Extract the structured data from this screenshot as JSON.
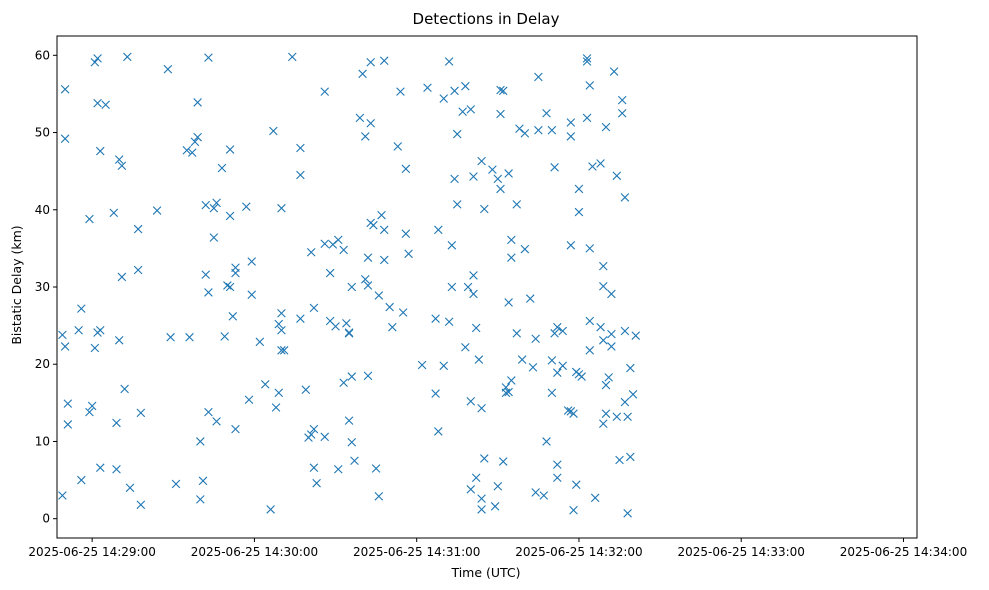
{
  "chart_data": {
    "type": "scatter",
    "title": "Detections in Delay",
    "xlabel": "Time (UTC)",
    "ylabel": "Bistatic Delay (km)",
    "marker": "x",
    "color": "#1f77b4",
    "grid": false,
    "xlim": [
      "2025-06-25 14:28:47",
      "2025-06-25 14:34:05"
    ],
    "ylim": [
      -2.5,
      62.5
    ],
    "xticks": [
      "2025-06-25 14:29:00",
      "2025-06-25 14:30:00",
      "2025-06-25 14:31:00",
      "2025-06-25 14:32:00",
      "2025-06-25 14:33:00",
      "2025-06-25 14:34:00"
    ],
    "yticks": [
      0,
      10,
      20,
      30,
      40,
      50,
      60
    ],
    "points": [
      [
        "2025-06-25 14:28:49",
        3.0
      ],
      [
        "2025-06-25 14:28:49",
        23.8
      ],
      [
        "2025-06-25 14:28:50",
        55.6
      ],
      [
        "2025-06-25 14:28:50",
        49.2
      ],
      [
        "2025-06-25 14:28:50",
        22.3
      ],
      [
        "2025-06-25 14:28:51",
        14.9
      ],
      [
        "2025-06-25 14:28:51",
        12.2
      ],
      [
        "2025-06-25 14:28:55",
        24.4
      ],
      [
        "2025-06-25 14:28:56",
        27.2
      ],
      [
        "2025-06-25 14:28:56",
        5.0
      ],
      [
        "2025-06-25 14:28:59",
        13.8
      ],
      [
        "2025-06-25 14:28:59",
        38.8
      ],
      [
        "2025-06-25 14:29:00",
        14.6
      ],
      [
        "2025-06-25 14:29:01",
        59.1
      ],
      [
        "2025-06-25 14:29:01",
        22.1
      ],
      [
        "2025-06-25 14:29:02",
        59.6
      ],
      [
        "2025-06-25 14:29:02",
        53.8
      ],
      [
        "2025-06-25 14:29:02",
        24.1
      ],
      [
        "2025-06-25 14:29:03",
        47.6
      ],
      [
        "2025-06-25 14:29:03",
        24.4
      ],
      [
        "2025-06-25 14:29:03",
        6.6
      ],
      [
        "2025-06-25 14:29:05",
        53.6
      ],
      [
        "2025-06-25 14:29:08",
        39.6
      ],
      [
        "2025-06-25 14:29:09",
        12.4
      ],
      [
        "2025-06-25 14:29:09",
        6.4
      ],
      [
        "2025-06-25 14:29:10",
        23.1
      ],
      [
        "2025-06-25 14:29:10",
        46.5
      ],
      [
        "2025-06-25 14:29:11",
        45.7
      ],
      [
        "2025-06-25 14:29:11",
        31.3
      ],
      [
        "2025-06-25 14:29:12",
        16.8
      ],
      [
        "2025-06-25 14:29:13",
        59.8
      ],
      [
        "2025-06-25 14:29:14",
        4.0
      ],
      [
        "2025-06-25 14:29:17",
        37.5
      ],
      [
        "2025-06-25 14:29:17",
        32.2
      ],
      [
        "2025-06-25 14:29:18",
        13.7
      ],
      [
        "2025-06-25 14:29:18",
        1.8
      ],
      [
        "2025-06-25 14:29:24",
        39.9
      ],
      [
        "2025-06-25 14:29:28",
        58.2
      ],
      [
        "2025-06-25 14:29:29",
        23.5
      ],
      [
        "2025-06-25 14:29:31",
        4.5
      ],
      [
        "2025-06-25 14:29:35",
        47.7
      ],
      [
        "2025-06-25 14:29:36",
        23.5
      ],
      [
        "2025-06-25 14:29:37",
        47.4
      ],
      [
        "2025-06-25 14:29:38",
        48.8
      ],
      [
        "2025-06-25 14:29:39",
        53.9
      ],
      [
        "2025-06-25 14:29:39",
        49.4
      ],
      [
        "2025-06-25 14:29:40",
        10.0
      ],
      [
        "2025-06-25 14:29:40",
        2.5
      ],
      [
        "2025-06-25 14:29:41",
        4.9
      ],
      [
        "2025-06-25 14:29:42",
        31.6
      ],
      [
        "2025-06-25 14:29:42",
        40.6
      ],
      [
        "2025-06-25 14:29:43",
        59.7
      ],
      [
        "2025-06-25 14:29:43",
        29.3
      ],
      [
        "2025-06-25 14:29:43",
        13.8
      ],
      [
        "2025-06-25 14:29:45",
        40.2
      ],
      [
        "2025-06-25 14:29:45",
        36.4
      ],
      [
        "2025-06-25 14:29:46",
        40.9
      ],
      [
        "2025-06-25 14:29:46",
        12.6
      ],
      [
        "2025-06-25 14:29:48",
        45.4
      ],
      [
        "2025-06-25 14:29:49",
        23.6
      ],
      [
        "2025-06-25 14:29:50",
        30.2
      ],
      [
        "2025-06-25 14:29:51",
        47.8
      ],
      [
        "2025-06-25 14:29:51",
        30.0
      ],
      [
        "2025-06-25 14:29:51",
        39.2
      ],
      [
        "2025-06-25 14:29:52",
        26.2
      ],
      [
        "2025-06-25 14:29:53",
        32.5
      ],
      [
        "2025-06-25 14:29:53",
        31.8
      ],
      [
        "2025-06-25 14:29:53",
        11.6
      ],
      [
        "2025-06-25 14:29:57",
        40.4
      ],
      [
        "2025-06-25 14:29:58",
        15.4
      ],
      [
        "2025-06-25 14:29:59",
        33.3
      ],
      [
        "2025-06-25 14:29:59",
        29.0
      ],
      [
        "2025-06-25 14:30:02",
        22.9
      ],
      [
        "2025-06-25 14:30:04",
        17.4
      ],
      [
        "2025-06-25 14:30:06",
        1.2
      ],
      [
        "2025-06-25 14:30:07",
        50.2
      ],
      [
        "2025-06-25 14:30:08",
        14.4
      ],
      [
        "2025-06-25 14:30:09",
        16.3
      ],
      [
        "2025-06-25 14:30:09",
        25.2
      ],
      [
        "2025-06-25 14:30:10",
        24.4
      ],
      [
        "2025-06-25 14:30:10",
        26.6
      ],
      [
        "2025-06-25 14:30:10",
        21.8
      ],
      [
        "2025-06-25 14:30:10",
        40.2
      ],
      [
        "2025-06-25 14:30:11",
        21.8
      ],
      [
        "2025-06-25 14:30:14",
        59.8
      ],
      [
        "2025-06-25 14:30:17",
        25.9
      ],
      [
        "2025-06-25 14:30:17",
        44.5
      ],
      [
        "2025-06-25 14:30:17",
        48.0
      ],
      [
        "2025-06-25 14:30:19",
        16.7
      ],
      [
        "2025-06-25 14:30:20",
        10.5
      ],
      [
        "2025-06-25 14:30:21",
        10.9
      ],
      [
        "2025-06-25 14:30:21",
        34.5
      ],
      [
        "2025-06-25 14:30:22",
        27.3
      ],
      [
        "2025-06-25 14:30:22",
        11.6
      ],
      [
        "2025-06-25 14:30:22",
        6.6
      ],
      [
        "2025-06-25 14:30:23",
        4.6
      ],
      [
        "2025-06-25 14:30:26",
        55.3
      ],
      [
        "2025-06-25 14:30:26",
        35.6
      ],
      [
        "2025-06-25 14:30:26",
        10.6
      ],
      [
        "2025-06-25 14:30:28",
        25.6
      ],
      [
        "2025-06-25 14:30:28",
        31.8
      ],
      [
        "2025-06-25 14:30:29",
        35.5
      ],
      [
        "2025-06-25 14:30:30",
        24.9
      ],
      [
        "2025-06-25 14:30:31",
        36.1
      ],
      [
        "2025-06-25 14:30:31",
        6.4
      ],
      [
        "2025-06-25 14:30:33",
        17.6
      ],
      [
        "2025-06-25 14:30:33",
        34.8
      ],
      [
        "2025-06-25 14:30:34",
        25.3
      ],
      [
        "2025-06-25 14:30:35",
        24.1
      ],
      [
        "2025-06-25 14:30:35",
        24.0
      ],
      [
        "2025-06-25 14:30:35",
        12.7
      ],
      [
        "2025-06-25 14:30:36",
        18.4
      ],
      [
        "2025-06-25 14:30:36",
        30.0
      ],
      [
        "2025-06-25 14:30:36",
        9.9
      ],
      [
        "2025-06-25 14:30:37",
        7.5
      ],
      [
        "2025-06-25 14:30:39",
        51.9
      ],
      [
        "2025-06-25 14:30:40",
        57.6
      ],
      [
        "2025-06-25 14:30:41",
        49.5
      ],
      [
        "2025-06-25 14:30:41",
        31.0
      ],
      [
        "2025-06-25 14:30:42",
        30.2
      ],
      [
        "2025-06-25 14:30:42",
        33.8
      ],
      [
        "2025-06-25 14:30:42",
        18.5
      ],
      [
        "2025-06-25 14:30:43",
        38.3
      ],
      [
        "2025-06-25 14:30:43",
        59.1
      ],
      [
        "2025-06-25 14:30:43",
        51.2
      ],
      [
        "2025-06-25 14:30:44",
        38.0
      ],
      [
        "2025-06-25 14:30:45",
        6.5
      ],
      [
        "2025-06-25 14:30:46",
        28.9
      ],
      [
        "2025-06-25 14:30:46",
        2.9
      ],
      [
        "2025-06-25 14:30:47",
        39.3
      ],
      [
        "2025-06-25 14:30:48",
        37.4
      ],
      [
        "2025-06-25 14:30:48",
        33.5
      ],
      [
        "2025-06-25 14:30:48",
        59.3
      ],
      [
        "2025-06-25 14:30:50",
        27.4
      ],
      [
        "2025-06-25 14:30:51",
        24.8
      ],
      [
        "2025-06-25 14:30:53",
        48.2
      ],
      [
        "2025-06-25 14:30:54",
        55.3
      ],
      [
        "2025-06-25 14:30:55",
        26.7
      ],
      [
        "2025-06-25 14:30:56",
        36.9
      ],
      [
        "2025-06-25 14:30:56",
        45.3
      ],
      [
        "2025-06-25 14:30:57",
        34.3
      ],
      [
        "2025-06-25 14:31:02",
        19.9
      ],
      [
        "2025-06-25 14:31:04",
        55.8
      ],
      [
        "2025-06-25 14:31:07",
        25.9
      ],
      [
        "2025-06-25 14:31:07",
        16.2
      ],
      [
        "2025-06-25 14:31:08",
        37.4
      ],
      [
        "2025-06-25 14:31:08",
        11.3
      ],
      [
        "2025-06-25 14:31:10",
        54.4
      ],
      [
        "2025-06-25 14:31:10",
        19.8
      ],
      [
        "2025-06-25 14:31:12",
        59.2
      ],
      [
        "2025-06-25 14:31:12",
        25.5
      ],
      [
        "2025-06-25 14:31:13",
        35.4
      ],
      [
        "2025-06-25 14:31:13",
        30.0
      ],
      [
        "2025-06-25 14:31:14",
        44.0
      ],
      [
        "2025-06-25 14:31:14",
        55.4
      ],
      [
        "2025-06-25 14:31:15",
        49.8
      ],
      [
        "2025-06-25 14:31:15",
        40.7
      ],
      [
        "2025-06-25 14:31:17",
        52.7
      ],
      [
        "2025-06-25 14:31:18",
        22.2
      ],
      [
        "2025-06-25 14:31:18",
        56.0
      ],
      [
        "2025-06-25 14:31:19",
        30.0
      ],
      [
        "2025-06-25 14:31:20",
        3.8
      ],
      [
        "2025-06-25 14:31:20",
        15.2
      ],
      [
        "2025-06-25 14:31:20",
        53.0
      ],
      [
        "2025-06-25 14:31:21",
        44.3
      ],
      [
        "2025-06-25 14:31:21",
        31.5
      ],
      [
        "2025-06-25 14:31:21",
        29.1
      ],
      [
        "2025-06-25 14:31:22",
        5.3
      ],
      [
        "2025-06-25 14:31:22",
        24.7
      ],
      [
        "2025-06-25 14:31:23",
        20.6
      ],
      [
        "2025-06-25 14:31:24",
        46.3
      ],
      [
        "2025-06-25 14:31:24",
        2.6
      ],
      [
        "2025-06-25 14:31:24",
        14.3
      ],
      [
        "2025-06-25 14:31:24",
        1.2
      ],
      [
        "2025-06-25 14:31:25",
        40.1
      ],
      [
        "2025-06-25 14:31:25",
        7.8
      ],
      [
        "2025-06-25 14:31:28",
        45.2
      ],
      [
        "2025-06-25 14:31:29",
        1.6
      ],
      [
        "2025-06-25 14:31:30",
        44.0
      ],
      [
        "2025-06-25 14:31:30",
        4.2
      ],
      [
        "2025-06-25 14:31:31",
        55.5
      ],
      [
        "2025-06-25 14:31:31",
        52.4
      ],
      [
        "2025-06-25 14:31:31",
        42.7
      ],
      [
        "2025-06-25 14:31:32",
        7.4
      ],
      [
        "2025-06-25 14:31:32",
        55.4
      ],
      [
        "2025-06-25 14:31:33",
        16.3
      ],
      [
        "2025-06-25 14:31:33",
        17.0
      ],
      [
        "2025-06-25 14:31:34",
        44.7
      ],
      [
        "2025-06-25 14:31:34",
        28.0
      ],
      [
        "2025-06-25 14:31:34",
        16.4
      ],
      [
        "2025-06-25 14:31:35",
        17.9
      ],
      [
        "2025-06-25 14:31:35",
        33.8
      ],
      [
        "2025-06-25 14:31:35",
        36.1
      ],
      [
        "2025-06-25 14:31:37",
        40.7
      ],
      [
        "2025-06-25 14:31:37",
        24.0
      ],
      [
        "2025-06-25 14:31:38",
        50.5
      ],
      [
        "2025-06-25 14:31:39",
        20.6
      ],
      [
        "2025-06-25 14:31:40",
        49.9
      ],
      [
        "2025-06-25 14:31:40",
        34.9
      ],
      [
        "2025-06-25 14:31:42",
        28.5
      ],
      [
        "2025-06-25 14:31:43",
        19.6
      ],
      [
        "2025-06-25 14:31:44",
        23.3
      ],
      [
        "2025-06-25 14:31:44",
        3.4
      ],
      [
        "2025-06-25 14:31:45",
        57.2
      ],
      [
        "2025-06-25 14:31:45",
        50.3
      ],
      [
        "2025-06-25 14:31:47",
        3.0
      ],
      [
        "2025-06-25 14:31:48",
        52.5
      ],
      [
        "2025-06-25 14:31:48",
        10.0
      ],
      [
        "2025-06-25 14:31:50",
        50.3
      ],
      [
        "2025-06-25 14:31:50",
        20.5
      ],
      [
        "2025-06-25 14:31:50",
        16.3
      ],
      [
        "2025-06-25 14:31:51",
        24.0
      ],
      [
        "2025-06-25 14:31:51",
        45.5
      ],
      [
        "2025-06-25 14:31:52",
        18.9
      ],
      [
        "2025-06-25 14:31:52",
        24.8
      ],
      [
        "2025-06-25 14:31:52",
        7.0
      ],
      [
        "2025-06-25 14:31:52",
        5.3
      ],
      [
        "2025-06-25 14:31:54",
        24.3
      ],
      [
        "2025-06-25 14:31:54",
        19.8
      ],
      [
        "2025-06-25 14:31:56",
        14.0
      ],
      [
        "2025-06-25 14:31:57",
        51.3
      ],
      [
        "2025-06-25 14:31:57",
        49.5
      ],
      [
        "2025-06-25 14:31:57",
        35.4
      ],
      [
        "2025-06-25 14:31:57",
        13.9
      ],
      [
        "2025-06-25 14:31:58",
        13.6
      ],
      [
        "2025-06-25 14:31:58",
        1.1
      ],
      [
        "2025-06-25 14:31:59",
        19.0
      ],
      [
        "2025-06-25 14:31:59",
        4.4
      ],
      [
        "2025-06-25 14:32:00",
        42.7
      ],
      [
        "2025-06-25 14:32:00",
        39.7
      ],
      [
        "2025-06-25 14:32:00",
        18.7
      ],
      [
        "2025-06-25 14:32:01",
        18.4
      ],
      [
        "2025-06-25 14:32:03",
        59.6
      ],
      [
        "2025-06-25 14:32:03",
        59.2
      ],
      [
        "2025-06-25 14:32:03",
        51.9
      ],
      [
        "2025-06-25 14:32:04",
        56.1
      ],
      [
        "2025-06-25 14:32:04",
        35.0
      ],
      [
        "2025-06-25 14:32:04",
        25.6
      ],
      [
        "2025-06-25 14:32:04",
        21.8
      ],
      [
        "2025-06-25 14:32:05",
        45.6
      ],
      [
        "2025-06-25 14:32:06",
        2.7
      ],
      [
        "2025-06-25 14:32:08",
        46.0
      ],
      [
        "2025-06-25 14:32:08",
        24.8
      ],
      [
        "2025-06-25 14:32:09",
        32.7
      ],
      [
        "2025-06-25 14:32:09",
        30.1
      ],
      [
        "2025-06-25 14:32:09",
        23.1
      ],
      [
        "2025-06-25 14:32:09",
        12.3
      ],
      [
        "2025-06-25 14:32:10",
        50.7
      ],
      [
        "2025-06-25 14:32:10",
        17.3
      ],
      [
        "2025-06-25 14:32:10",
        13.6
      ],
      [
        "2025-06-25 14:32:11",
        18.3
      ],
      [
        "2025-06-25 14:32:12",
        22.3
      ],
      [
        "2025-06-25 14:32:12",
        23.9
      ],
      [
        "2025-06-25 14:32:12",
        29.1
      ],
      [
        "2025-06-25 14:32:13",
        57.9
      ],
      [
        "2025-06-25 14:32:14",
        44.4
      ],
      [
        "2025-06-25 14:32:14",
        13.2
      ],
      [
        "2025-06-25 14:32:15",
        7.6
      ],
      [
        "2025-06-25 14:32:16",
        54.2
      ],
      [
        "2025-06-25 14:32:16",
        52.5
      ],
      [
        "2025-06-25 14:32:17",
        24.3
      ],
      [
        "2025-06-25 14:32:17",
        15.1
      ],
      [
        "2025-06-25 14:32:17",
        41.6
      ],
      [
        "2025-06-25 14:32:18",
        13.2
      ],
      [
        "2025-06-25 14:32:18",
        0.7
      ],
      [
        "2025-06-25 14:32:19",
        19.5
      ],
      [
        "2025-06-25 14:32:19",
        8.0
      ],
      [
        "2025-06-25 14:32:20",
        16.1
      ],
      [
        "2025-06-25 14:32:21",
        23.7
      ]
    ]
  }
}
